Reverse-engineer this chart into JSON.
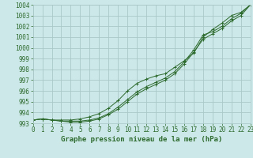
{
  "x": [
    0,
    1,
    2,
    3,
    4,
    5,
    6,
    7,
    8,
    9,
    10,
    11,
    12,
    13,
    14,
    15,
    16,
    17,
    18,
    19,
    20,
    21,
    22,
    23
  ],
  "line1": [
    993.3,
    993.4,
    993.3,
    993.3,
    993.3,
    993.4,
    993.6,
    993.9,
    994.4,
    995.1,
    996.0,
    996.7,
    997.1,
    997.4,
    997.6,
    998.2,
    998.8,
    999.5,
    1001.0,
    1001.7,
    1002.3,
    1003.0,
    1003.3,
    1004.0
  ],
  "line2": [
    993.3,
    993.4,
    993.3,
    993.2,
    993.2,
    993.2,
    993.3,
    993.5,
    993.9,
    994.5,
    995.2,
    995.9,
    996.4,
    996.8,
    997.2,
    997.8,
    998.7,
    999.8,
    1001.2,
    1001.5,
    1002.0,
    1002.7,
    1003.2,
    1004.0
  ],
  "line3": [
    993.3,
    993.4,
    993.3,
    993.2,
    993.1,
    993.1,
    993.2,
    993.4,
    993.8,
    994.3,
    995.0,
    995.7,
    996.2,
    996.6,
    997.0,
    997.6,
    998.5,
    999.6,
    1000.8,
    1001.3,
    1001.8,
    1002.5,
    1003.0,
    1004.0
  ],
  "line_color": "#2d6a2d",
  "bg_color": "#cce8e8",
  "grid_color": "#aac8c8",
  "xlabel": "Graphe pression niveau de la mer (hPa)",
  "ylim_min": 993.0,
  "ylim_max": 1004.0,
  "xlim_min": 0,
  "xlim_max": 23,
  "yticks": [
    993,
    994,
    995,
    996,
    997,
    998,
    999,
    1000,
    1001,
    1002,
    1003,
    1004
  ],
  "xticks": [
    0,
    1,
    2,
    3,
    4,
    5,
    6,
    7,
    8,
    9,
    10,
    11,
    12,
    13,
    14,
    15,
    16,
    17,
    18,
    19,
    20,
    21,
    22,
    23
  ],
  "tick_fontsize": 5.5,
  "xlabel_fontsize": 6.5
}
